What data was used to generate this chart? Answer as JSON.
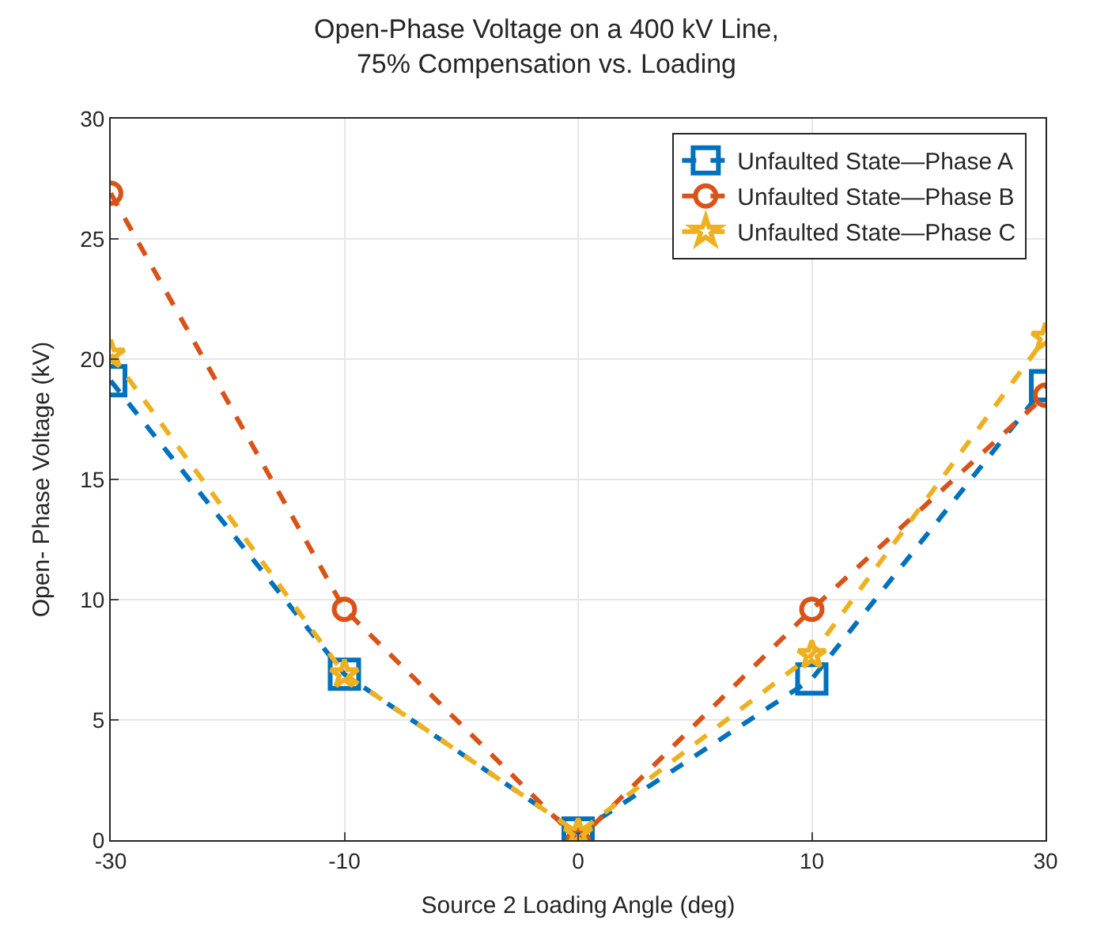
{
  "chart_data": {
    "type": "line",
    "title": "Open-Phase Voltage on a 400 kV Line,\n75% Compensation vs. Loading",
    "xlabel": "Source 2 Loading Angle (deg)",
    "ylabel": "Open- Phase Voltage (kV)",
    "categories": [
      "-30",
      "-10",
      "0",
      "10",
      "30"
    ],
    "series": [
      {
        "name": "Unfaulted State—Phase A",
        "color": "#0072bd",
        "marker": "square",
        "values": [
          19.1,
          6.9,
          0.3,
          6.7,
          18.9
        ]
      },
      {
        "name": "Unfaulted State—Phase B",
        "color": "#d95319",
        "marker": "circle",
        "values": [
          26.9,
          9.6,
          0.0,
          9.6,
          18.5
        ]
      },
      {
        "name": "Unfaulted State—Phase C",
        "color": "#edb120",
        "marker": "star",
        "values": [
          20.2,
          6.9,
          0.3,
          7.7,
          20.9
        ]
      }
    ],
    "ylim": [
      0,
      30
    ],
    "yticks": [
      0,
      5,
      10,
      15,
      20,
      25,
      30
    ],
    "grid": true,
    "legend": "top right",
    "line_style": "dashed"
  }
}
